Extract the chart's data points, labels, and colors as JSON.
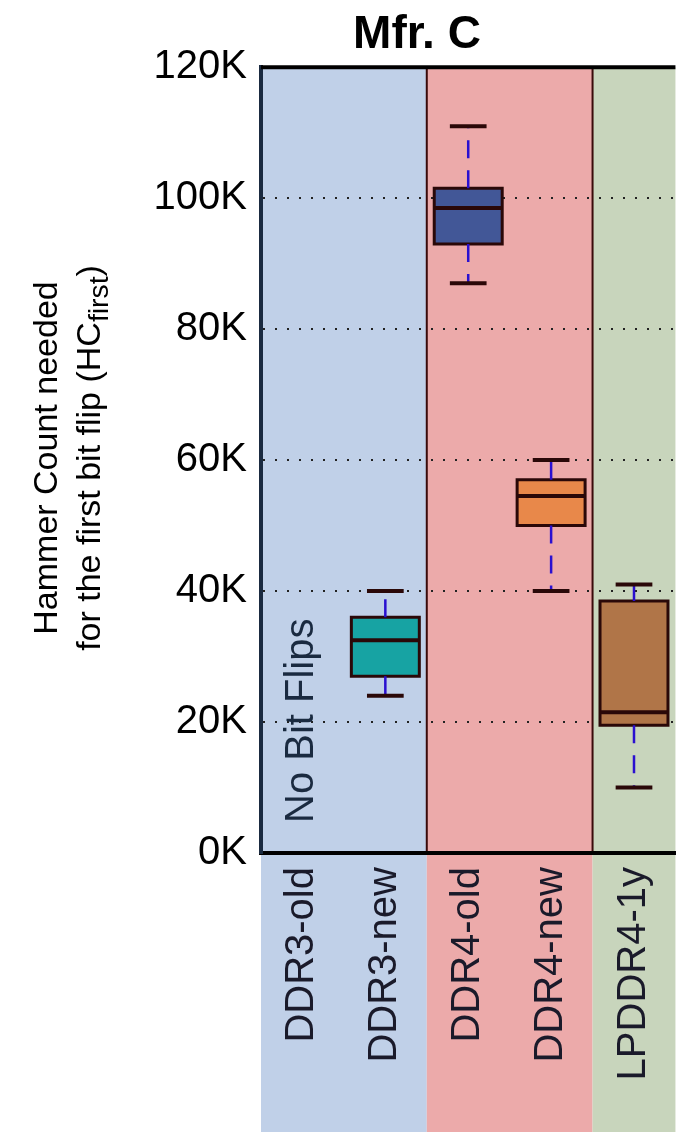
{
  "chart_data": {
    "type": "box",
    "title": "Mfr. C",
    "ylabel": "Hammer Count needed\nfor the first bit flip (HC$_{first}$)",
    "categories": [
      "DDR3-old",
      "DDR3-new",
      "DDR4-old",
      "DDR4-new",
      "LPDDR4-1y"
    ],
    "boxes": [
      null,
      {
        "low": 24,
        "q1": 27,
        "median": 32.5,
        "q3": 36,
        "high": 40
      },
      {
        "low": 87,
        "q1": 93,
        "median": 98.5,
        "q3": 101.5,
        "high": 111
      },
      {
        "low": 40,
        "q1": 50,
        "median": 54.5,
        "q3": 57,
        "high": 60
      },
      {
        "low": 10,
        "q1": 19.5,
        "median": 21.5,
        "q3": 38.5,
        "high": 41
      }
    ],
    "colors": [
      null,
      "#17a3a3",
      "#425797",
      "#e8884a",
      "#b07548"
    ],
    "ylim": [
      0,
      120
    ],
    "yticks": [
      {
        "value": 0,
        "label": "0K"
      },
      {
        "value": 20,
        "label": "20K"
      },
      {
        "value": 40,
        "label": "40K"
      },
      {
        "value": 60,
        "label": "60K"
      },
      {
        "value": 80,
        "label": "80K"
      },
      {
        "value": 100,
        "label": "100K"
      },
      {
        "value": 120,
        "label": "120K"
      }
    ],
    "bands": [
      {
        "axis": "x",
        "from": "DDR3-old",
        "to": "DDR3-new",
        "color": "#c0d0e8"
      },
      {
        "axis": "x",
        "from": "DDR4-old",
        "to": "DDR4-new",
        "color": "#ecaaaa"
      },
      {
        "axis": "x",
        "from": "LPDDR4-1y",
        "to": "LPDDR4-1y",
        "color": "#c8d5bc"
      }
    ],
    "annotations": [
      "No Bit Flips"
    ],
    "grid": "y",
    "legend": false
  }
}
